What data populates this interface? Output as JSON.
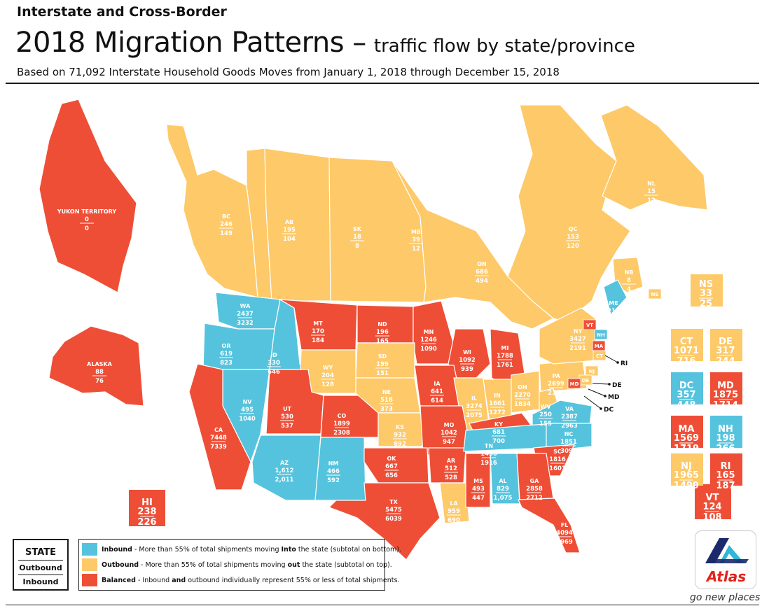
{
  "header": {
    "kicker": "Interstate and Cross-Border",
    "title": "2018 Migration Patterns –",
    "subtitle": "traffic flow by state/province",
    "note": "Based on 71,092 Interstate Household Goods Moves from January 1, 2018 through December 15, 2018"
  },
  "colors": {
    "inbound": "#55c3dd",
    "outbound": "#fdc969",
    "balanced": "#ee4e36"
  },
  "regions": [
    {
      "code": "YUKON TERRITORY",
      "top": "0",
      "bottom": "0",
      "category": "balanced"
    },
    {
      "code": "BC",
      "top": "246",
      "bottom": "149",
      "category": "outbound"
    },
    {
      "code": "AB",
      "top": "195",
      "bottom": "104",
      "category": "outbound"
    },
    {
      "code": "SK",
      "top": "18",
      "bottom": "8",
      "category": "outbound"
    },
    {
      "code": "MB",
      "top": "39",
      "bottom": "12",
      "category": "outbound"
    },
    {
      "code": "ON",
      "top": "686",
      "bottom": "494",
      "category": "outbound"
    },
    {
      "code": "QC",
      "top": "153",
      "bottom": "120",
      "category": "outbound"
    },
    {
      "code": "NL",
      "top": "15",
      "bottom": "12",
      "category": "outbound"
    },
    {
      "code": "NB",
      "top": "8",
      "bottom": "4",
      "category": "outbound"
    },
    {
      "code": "NS",
      "top": "33",
      "bottom": "25",
      "category": "outbound"
    },
    {
      "code": "ALASKA",
      "top": "88",
      "bottom": "76",
      "category": "balanced"
    },
    {
      "code": "HI",
      "top": "238",
      "bottom": "226",
      "category": "balanced"
    },
    {
      "code": "WA",
      "top": "2437",
      "bottom": "3232",
      "category": "inbound"
    },
    {
      "code": "OR",
      "top": "619",
      "bottom": "823",
      "category": "inbound"
    },
    {
      "code": "ID",
      "top": "330",
      "bottom": "646",
      "category": "inbound"
    },
    {
      "code": "MT",
      "top": "170",
      "bottom": "184",
      "category": "balanced"
    },
    {
      "code": "ND",
      "top": "196",
      "bottom": "165",
      "category": "balanced"
    },
    {
      "code": "MN",
      "top": "1246",
      "bottom": "1090",
      "category": "balanced"
    },
    {
      "code": "WI",
      "top": "1092",
      "bottom": "939",
      "category": "balanced"
    },
    {
      "code": "MI",
      "top": "1788",
      "bottom": "1761",
      "category": "balanced"
    },
    {
      "code": "WY",
      "top": "204",
      "bottom": "128",
      "category": "outbound"
    },
    {
      "code": "SD",
      "top": "199",
      "bottom": "151",
      "category": "outbound"
    },
    {
      "code": "NV",
      "top": "495",
      "bottom": "1040",
      "category": "inbound"
    },
    {
      "code": "UT",
      "top": "530",
      "bottom": "537",
      "category": "balanced"
    },
    {
      "code": "CO",
      "top": "1899",
      "bottom": "2308",
      "category": "balanced"
    },
    {
      "code": "NE",
      "top": "518",
      "bottom": "373",
      "category": "outbound"
    },
    {
      "code": "IA",
      "top": "641",
      "bottom": "614",
      "category": "balanced"
    },
    {
      "code": "IL",
      "top": "3274",
      "bottom": "2075",
      "category": "outbound"
    },
    {
      "code": "IN",
      "top": "1661",
      "bottom": "1272",
      "category": "outbound"
    },
    {
      "code": "OH",
      "top": "2270",
      "bottom": "1834",
      "category": "outbound"
    },
    {
      "code": "PA",
      "top": "2699",
      "bottom": "2181",
      "category": "outbound"
    },
    {
      "code": "NY",
      "top": "3427",
      "bottom": "2191",
      "category": "outbound"
    },
    {
      "code": "CA",
      "top": "7448",
      "bottom": "7339",
      "category": "balanced"
    },
    {
      "code": "AZ",
      "top": "1,612",
      "bottom": "2,011",
      "category": "inbound"
    },
    {
      "code": "NM",
      "top": "466",
      "bottom": "592",
      "category": "inbound"
    },
    {
      "code": "KS",
      "top": "932",
      "bottom": "692",
      "category": "outbound"
    },
    {
      "code": "MO",
      "top": "1042",
      "bottom": "947",
      "category": "balanced"
    },
    {
      "code": "KY",
      "top": "681",
      "bottom": "700",
      "category": "balanced"
    },
    {
      "code": "WV",
      "top": "250",
      "bottom": "155",
      "category": "outbound"
    },
    {
      "code": "VA",
      "top": "2387",
      "bottom": "2963",
      "category": "inbound"
    },
    {
      "code": "OK",
      "top": "667",
      "bottom": "656",
      "category": "balanced"
    },
    {
      "code": "AR",
      "top": "512",
      "bottom": "528",
      "category": "balanced"
    },
    {
      "code": "TN",
      "top": "1436",
      "bottom": "1916",
      "category": "inbound"
    },
    {
      "code": "NC",
      "top": "1851",
      "bottom": "3095",
      "category": "inbound"
    },
    {
      "code": "SC",
      "top": "1816",
      "bottom": "1601",
      "category": "balanced"
    },
    {
      "code": "TX",
      "top": "5475",
      "bottom": "6039",
      "category": "balanced"
    },
    {
      "code": "LA",
      "top": "959",
      "bottom": "690",
      "category": "outbound"
    },
    {
      "code": "MS",
      "top": "493",
      "bottom": "447",
      "category": "balanced"
    },
    {
      "code": "AL",
      "top": "829",
      "bottom": "1,075",
      "category": "inbound"
    },
    {
      "code": "GA",
      "top": "2858",
      "bottom": "2712",
      "category": "balanced"
    },
    {
      "code": "FL",
      "top": "4094",
      "bottom": "4969",
      "category": "balanced"
    },
    {
      "code": "ME",
      "top": "210",
      "bottom": "260",
      "category": "inbound"
    },
    {
      "code": "VT",
      "top": "124",
      "bottom": "108",
      "category": "balanced"
    },
    {
      "code": "NH",
      "top": "198",
      "bottom": "266",
      "category": "inbound"
    },
    {
      "code": "MA",
      "top": "1569",
      "bottom": "1719",
      "category": "balanced"
    },
    {
      "code": "RI",
      "top": "165",
      "bottom": "187",
      "category": "balanced"
    },
    {
      "code": "CT",
      "top": "1071",
      "bottom": "716",
      "category": "outbound"
    },
    {
      "code": "NJ",
      "top": "1965",
      "bottom": "1499",
      "category": "outbound"
    },
    {
      "code": "DE",
      "top": "317",
      "bottom": "244",
      "category": "outbound"
    },
    {
      "code": "MD",
      "top": "1875",
      "bottom": "1714",
      "category": "balanced"
    },
    {
      "code": "DC",
      "top": "357",
      "bottom": "448",
      "category": "inbound"
    }
  ],
  "callouts": [
    "RI",
    "DE",
    "MD",
    "DC"
  ],
  "map_labels": [
    "NS",
    "NH",
    "MA",
    "VT",
    "NJ",
    "DE",
    "MD",
    "CT"
  ],
  "legend": {
    "key_state": "STATE",
    "key_outbound": "Outbound",
    "key_inbound": "Inbound",
    "rows": [
      {
        "category": "inbound",
        "bold": "Inbound",
        "text": " - More than 55% of total shipments moving ",
        "em": "Into",
        "tail": " the state (subtotal on bottom)."
      },
      {
        "category": "outbound",
        "bold": "Outbound",
        "text": " - More than 55% of total shipments moving ",
        "em": "out",
        "tail": " the state (subtotal on top)."
      },
      {
        "category": "balanced",
        "bold": "Balanced",
        "text": " - Inbound ",
        "em": "and",
        "tail": " outbound individually represent 55% or less of total shipments."
      }
    ]
  },
  "brand": {
    "name": "Atlas",
    "tagline": "go new places",
    "navy": "#1b2a6b",
    "teal": "#31b6d6",
    "red": "#e2231a"
  }
}
